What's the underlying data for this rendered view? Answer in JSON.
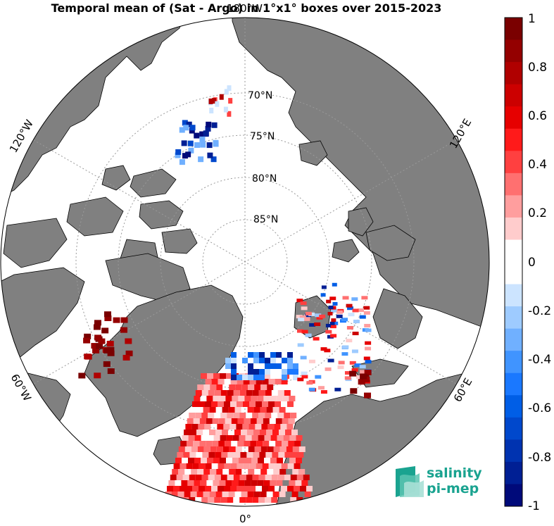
{
  "title": "Temporal mean of (Sat - Argo) in 1°x1° boxes over 2015-2023",
  "projection": "north polar stereographic",
  "latitude_labels": [
    "70°N",
    "75°N",
    "80°N",
    "85°N"
  ],
  "longitude_labels": {
    "top": "180°W",
    "upper_left": "120°W",
    "upper_right": "120°E",
    "lower_left": "60°W",
    "lower_right": "60°E",
    "bottom": "0°"
  },
  "colorbar": {
    "min": -1,
    "max": 1,
    "tick_labels": [
      "1",
      "0.8",
      "0.6",
      "0.4",
      "0.2",
      "0",
      "-0.2",
      "-0.4",
      "-0.6",
      "-0.8",
      "-1"
    ],
    "colors": [
      "#7a0000",
      "#940000",
      "#b00000",
      "#cc0000",
      "#e60000",
      "#ff1a1a",
      "#ff4040",
      "#ff7070",
      "#ff9e9e",
      "#ffcccc",
      "#ffffff",
      "#ffffff",
      "#cce4ff",
      "#9ecbff",
      "#70b0ff",
      "#4094ff",
      "#1a78ff",
      "#005ee6",
      "#0048cc",
      "#0033b0",
      "#001f94",
      "#000a7a"
    ]
  },
  "colors": {
    "land": "#808080",
    "ocean": "#ffffff",
    "ice_mask": "#ffffff",
    "coast": "#000000",
    "grid": "#9a9a9a"
  },
  "logo": {
    "line1": "salinity",
    "line2": "pi-mep",
    "color": "#1aa390"
  }
}
